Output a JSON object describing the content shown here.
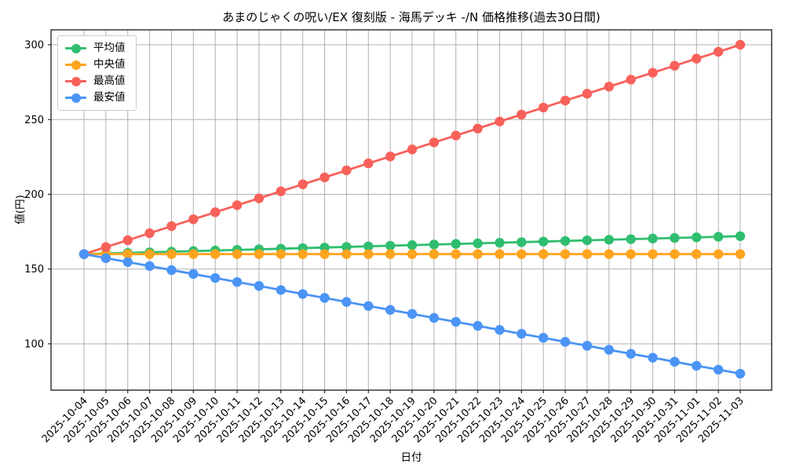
{
  "figure": {
    "title": "あまのじゃくの呪い/EX 復刻版 - 海馬デッキ -/N 価格推移(過去30日間)",
    "xlabel": "日付",
    "ylabel": "値(円)"
  },
  "chart_data": {
    "type": "line",
    "title": "あまのじゃくの呪い/EX 復刻版 - 海馬デッキ -/N 価格推移(過去30日間)",
    "xlabel": "日付",
    "ylabel": "値(円)",
    "grid": true,
    "legend_position": "upper left",
    "ylim": [
      69,
      310
    ],
    "yticks": [
      100,
      150,
      200,
      250,
      300
    ],
    "x": [
      "2025-10-04",
      "2025-10-05",
      "2025-10-06",
      "2025-10-07",
      "2025-10-08",
      "2025-10-09",
      "2025-10-10",
      "2025-10-11",
      "2025-10-12",
      "2025-10-13",
      "2025-10-14",
      "2025-10-15",
      "2025-10-16",
      "2025-10-17",
      "2025-10-18",
      "2025-10-19",
      "2025-10-20",
      "2025-10-21",
      "2025-10-22",
      "2025-10-23",
      "2025-10-24",
      "2025-10-25",
      "2025-10-26",
      "2025-10-27",
      "2025-10-28",
      "2025-10-29",
      "2025-10-30",
      "2025-10-31",
      "2025-11-01",
      "2025-11-02",
      "2025-11-03"
    ],
    "series": [
      {
        "key": "average",
        "name": "平均値",
        "color": "#2fbe6f",
        "values": [
          160,
          160.4,
          160.8,
          161.2,
          161.6,
          162,
          162.4,
          162.8,
          163.2,
          163.6,
          164,
          164.4,
          164.8,
          165.2,
          165.6,
          166,
          166.4,
          166.8,
          167.2,
          167.6,
          168,
          168.4,
          168.8,
          169.2,
          169.6,
          170,
          170.4,
          170.8,
          171.2,
          171.6,
          172
        ]
      },
      {
        "key": "median",
        "name": "中央値",
        "color": "#ffa41f",
        "values": [
          160,
          160,
          160,
          160,
          160,
          160,
          160,
          160,
          160,
          160,
          160,
          160,
          160,
          160,
          160,
          160,
          160,
          160,
          160,
          160,
          160,
          160,
          160,
          160,
          160,
          160,
          160,
          160,
          160,
          160,
          160
        ]
      },
      {
        "key": "max",
        "name": "最高値",
        "color": "#f8615a",
        "values": [
          160,
          164.7,
          169.3,
          174,
          178.7,
          183.3,
          188,
          192.7,
          197.3,
          202,
          206.7,
          211.3,
          216,
          220.7,
          225.3,
          230,
          234.7,
          239.3,
          244,
          248.7,
          253.3,
          258,
          262.7,
          267.3,
          272,
          276.7,
          281.3,
          286,
          290.7,
          295.3,
          300
        ]
      },
      {
        "key": "min",
        "name": "最安値",
        "color": "#4b94f5",
        "values": [
          160,
          157.3,
          154.7,
          152,
          149.3,
          146.7,
          144,
          141.3,
          138.7,
          136,
          133.3,
          130.7,
          128,
          125.3,
          122.7,
          120,
          117.3,
          114.7,
          112,
          109.3,
          106.7,
          104,
          101.3,
          98.7,
          96,
          93.3,
          90.7,
          88,
          85.3,
          82.7,
          80
        ]
      }
    ]
  }
}
